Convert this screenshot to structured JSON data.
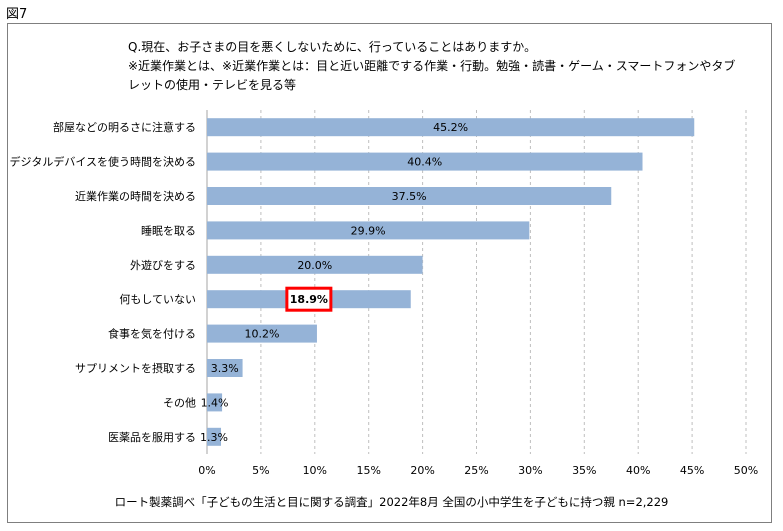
{
  "figure_label": "図7",
  "question": {
    "line1": "Q.現在、お子さまの目を悪くしないために、行っていることはありますか。",
    "line2": "※近業作業とは、※近業作業とは：目と近い距離でする作業・行動。勉強・読書・ゲーム・スマートフォンやタブ",
    "line3": "レットの使用・テレビを見る等"
  },
  "source": "ロート製薬調べ「子どもの生活と目に関する調査」2022年8月 全国の小中学生を子どもに持つ親  n=2,229",
  "colors": {
    "bar": "#95b3d7",
    "highlight_border": "#ff0000",
    "grid": "#bfbfbf",
    "frame": "#7f7f7f"
  },
  "chart_data": {
    "type": "bar",
    "orientation": "horizontal",
    "categories": [
      "部屋などの明るさに注意する",
      "デジタルデバイスを使う時間を決める",
      "近業作業の時間を決める",
      "睡眠を取る",
      "外遊びをする",
      "何もしていない",
      "食事を気を付ける",
      "サプリメントを摂取する",
      "その他",
      "医薬品を服用する"
    ],
    "values": [
      45.2,
      40.4,
      37.5,
      29.9,
      20.0,
      18.9,
      10.2,
      3.3,
      1.4,
      1.3
    ],
    "value_labels": [
      "45.2%",
      "40.4%",
      "37.5%",
      "29.9%",
      "20.0%",
      "18.9%",
      "10.2%",
      "3.3%",
      "1.4%",
      "1.3%"
    ],
    "highlight_index": 5,
    "xlim": [
      0,
      50
    ],
    "xticks": [
      "0%",
      "5%",
      "10%",
      "15%",
      "20%",
      "25%",
      "30%",
      "35%",
      "40%",
      "45%",
      "50%"
    ],
    "grid": "vertical dashed"
  }
}
